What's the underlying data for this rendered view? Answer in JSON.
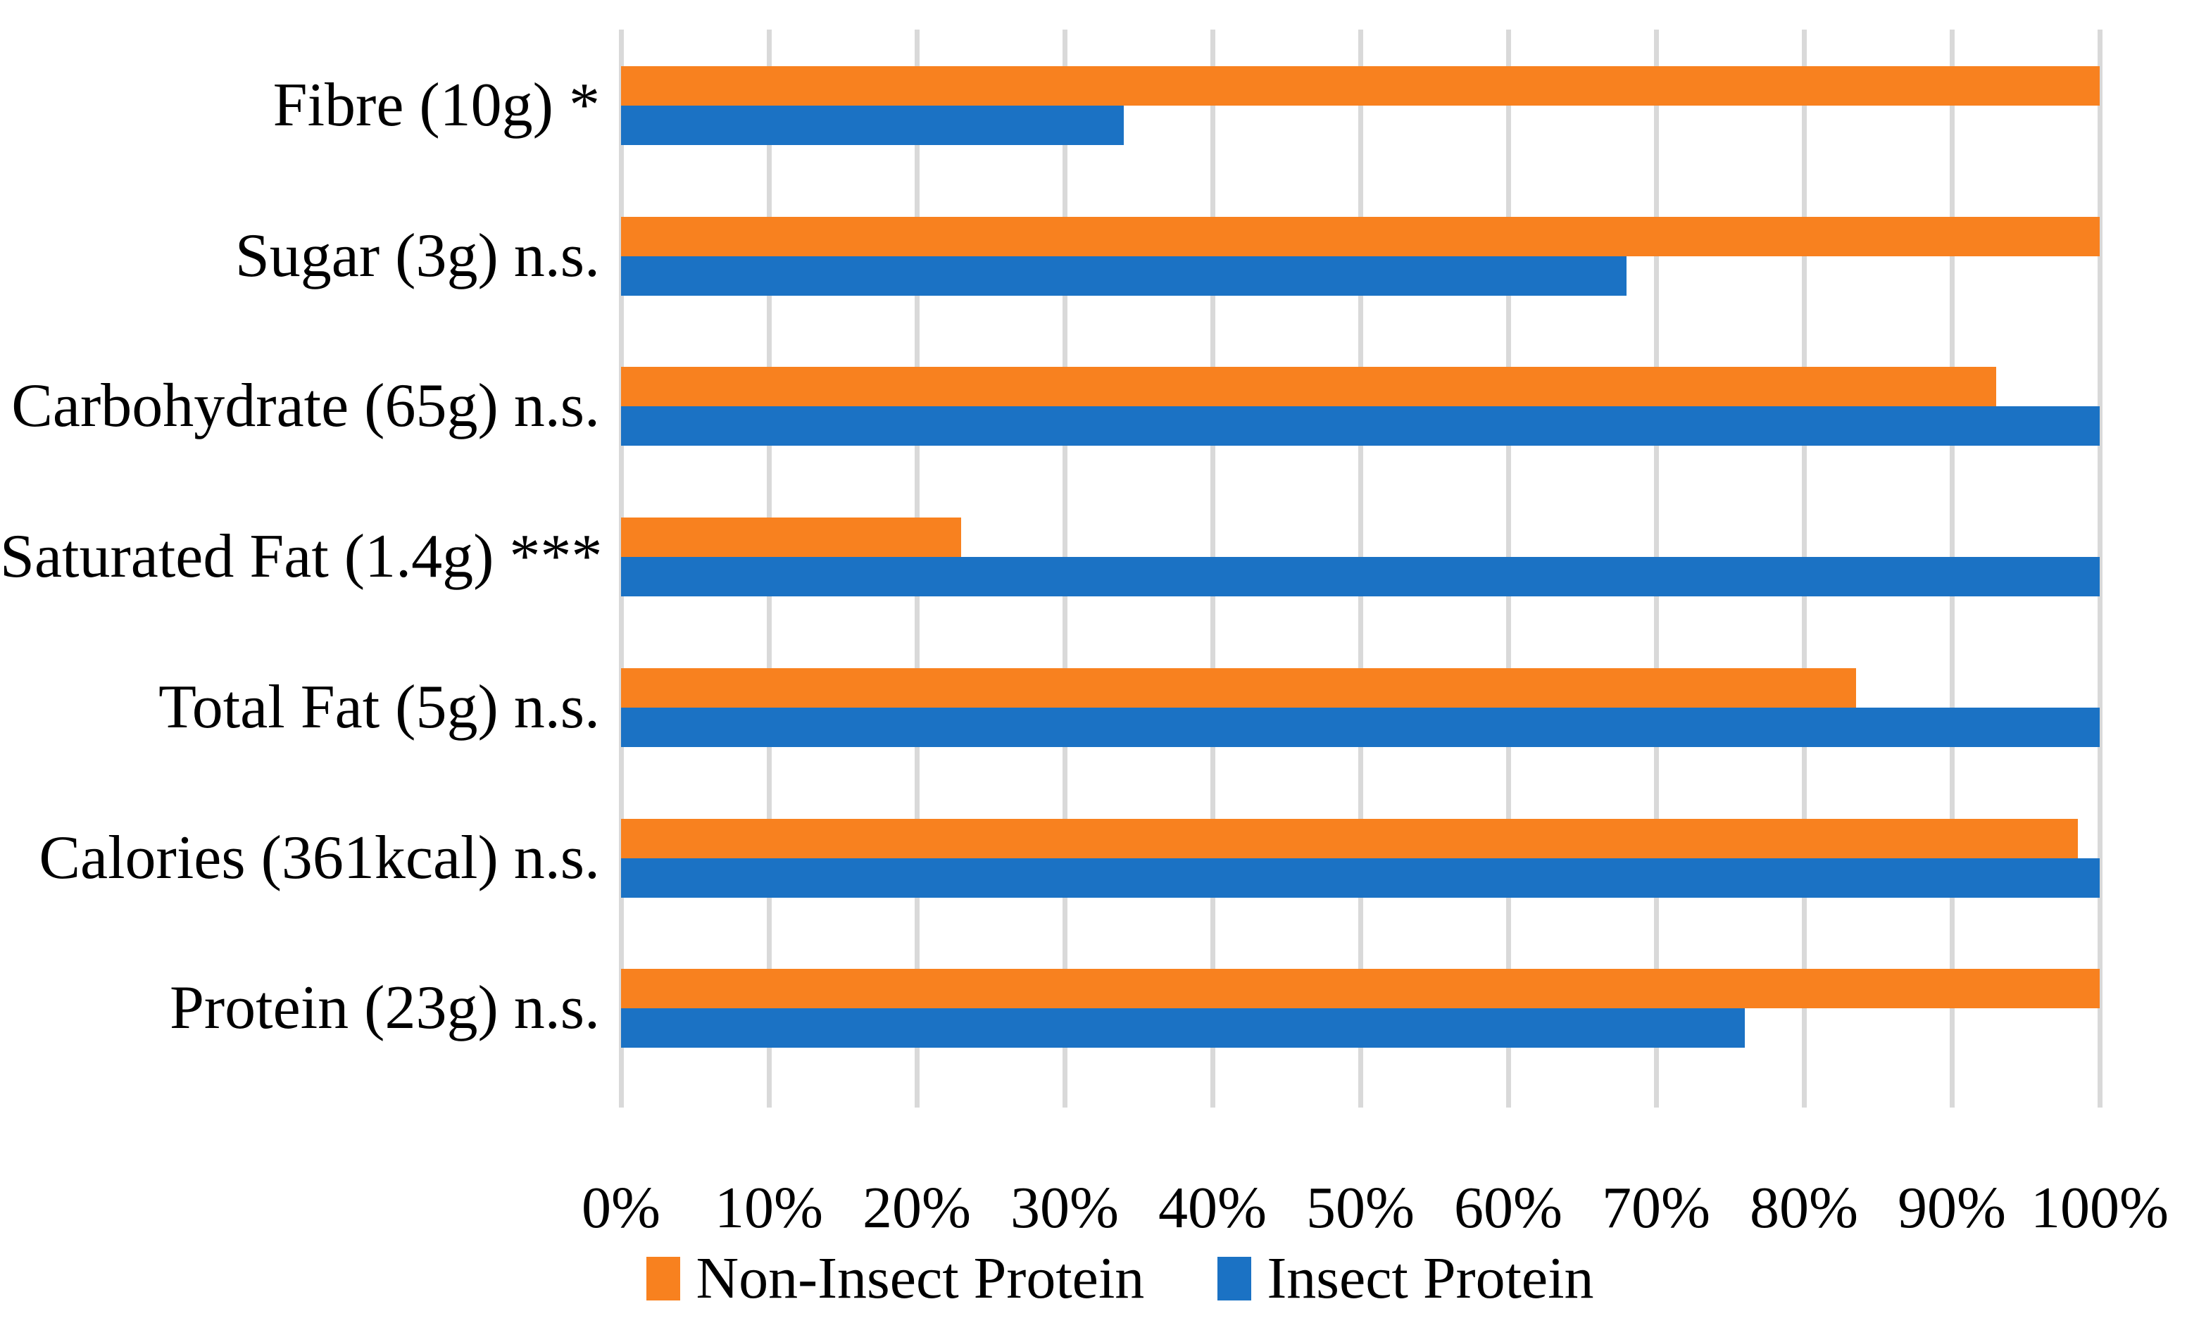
{
  "figure": {
    "background": "#FFFFFF",
    "text_color": "#000000"
  },
  "chart_data": {
    "type": "bar",
    "orientation": "horizontal",
    "title": "",
    "xlabel": "",
    "ylabel": "",
    "categories": [
      "Fibre (10g) *",
      "Sugar (3g) n.s.",
      "Carbohydrate (65g) n.s.",
      "Saturated Fat (1.4g) ***",
      "Total Fat (5g) n.s.",
      "Calories (361kcal) n.s.",
      "Protein (23g) n.s."
    ],
    "series": [
      {
        "name": "Non-Insect Protein",
        "color": "#F8811F",
        "values": [
          100,
          100,
          93,
          23,
          83.5,
          98.5,
          100
        ]
      },
      {
        "name": "Insect Protein",
        "color": "#1B72C4",
        "values": [
          34,
          68,
          100,
          100,
          100,
          100,
          76
        ]
      }
    ],
    "x_ticks": [
      "0%",
      "10%",
      "20%",
      "30%",
      "40%",
      "50%",
      "60%",
      "70%",
      "80%",
      "90%",
      "100%"
    ],
    "xlim": [
      0,
      100
    ],
    "grid": "vertical",
    "gridline_color": "#D9D9D9",
    "legend_position": "bottom"
  }
}
